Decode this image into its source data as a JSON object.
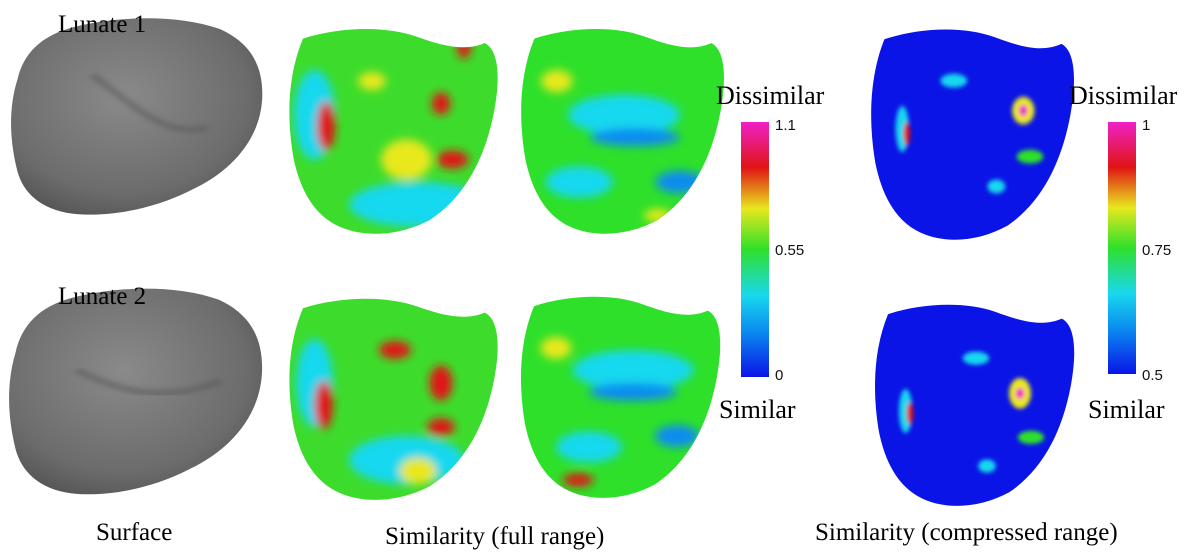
{
  "row_labels": {
    "top": "Lunate 1",
    "bottom": "Lunate 2"
  },
  "column_labels": {
    "surface": "Surface",
    "full": "Similarity (full range)",
    "compressed": "Similarity (compressed range)"
  },
  "legend_full": {
    "top_label": "Dissimilar",
    "bottom_label": "Similar",
    "tick_max": "1.1",
    "tick_mid": "0.55",
    "tick_min": "0"
  },
  "legend_compressed": {
    "top_label": "Dissimilar",
    "bottom_label": "Similar",
    "tick_max": "1",
    "tick_mid": "0.75",
    "tick_min": "0.5"
  },
  "colors": {
    "surface_gray": "#6f6f6f",
    "low_blue": "#0a14e6",
    "cyan": "#19d8ee",
    "green": "#3ddc2c",
    "yellow": "#e8e81e",
    "red": "#e01414",
    "magenta": "#f020c8"
  }
}
